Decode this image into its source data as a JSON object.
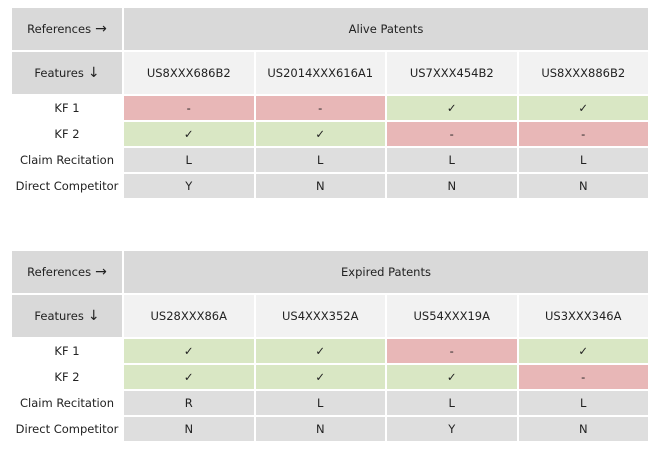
{
  "tables": [
    {
      "references_label": "References",
      "references_arrow": "→",
      "features_label": "Features",
      "features_arrow": "↓",
      "group_title": "Alive Patents",
      "patents": [
        "US8XXX686B2",
        "US2014XXX616A1",
        "US7XXX454B2",
        "US8XXX886B2"
      ],
      "rows": [
        {
          "label": "KF 1",
          "cells": [
            {
              "text": "-",
              "status": "red"
            },
            {
              "text": "-",
              "status": "red"
            },
            {
              "text": "✓",
              "status": "green"
            },
            {
              "text": "✓",
              "status": "green"
            }
          ]
        },
        {
          "label": "KF 2",
          "cells": [
            {
              "text": "✓",
              "status": "green"
            },
            {
              "text": "✓",
              "status": "green"
            },
            {
              "text": "-",
              "status": "red"
            },
            {
              "text": "-",
              "status": "red"
            }
          ]
        },
        {
          "label": "Claim Recitation",
          "cells": [
            {
              "text": "L",
              "status": "gray"
            },
            {
              "text": "L",
              "status": "gray"
            },
            {
              "text": "L",
              "status": "gray"
            },
            {
              "text": "L",
              "status": "gray"
            }
          ]
        },
        {
          "label": "Direct Competitor",
          "cells": [
            {
              "text": "Y",
              "status": "gray"
            },
            {
              "text": "N",
              "status": "gray"
            },
            {
              "text": "N",
              "status": "gray"
            },
            {
              "text": "N",
              "status": "gray"
            }
          ]
        }
      ]
    },
    {
      "references_label": "References",
      "references_arrow": "→",
      "features_label": "Features",
      "features_arrow": "↓",
      "group_title": "Expired Patents",
      "patents": [
        "US28XXX86A",
        "US4XXX352A",
        "US54XXX19A",
        "US3XXX346A"
      ],
      "rows": [
        {
          "label": "KF 1",
          "cells": [
            {
              "text": "✓",
              "status": "green"
            },
            {
              "text": "✓",
              "status": "green"
            },
            {
              "text": "-",
              "status": "red"
            },
            {
              "text": "✓",
              "status": "green"
            }
          ]
        },
        {
          "label": "KF 2",
          "cells": [
            {
              "text": "✓",
              "status": "green"
            },
            {
              "text": "✓",
              "status": "green"
            },
            {
              "text": "✓",
              "status": "green"
            },
            {
              "text": "-",
              "status": "red"
            }
          ]
        },
        {
          "label": "Claim Recitation",
          "cells": [
            {
              "text": "R",
              "status": "gray"
            },
            {
              "text": "L",
              "status": "gray"
            },
            {
              "text": "L",
              "status": "gray"
            },
            {
              "text": "L",
              "status": "gray"
            }
          ]
        },
        {
          "label": "Direct Competitor",
          "cells": [
            {
              "text": "N",
              "status": "gray"
            },
            {
              "text": "N",
              "status": "gray"
            },
            {
              "text": "Y",
              "status": "gray"
            },
            {
              "text": "N",
              "status": "gray"
            }
          ]
        }
      ]
    }
  ],
  "colors": {
    "green": "#d9e7c4",
    "red": "#e8b7b7",
    "gray": "#dedede",
    "header": "#d9d9d9"
  }
}
